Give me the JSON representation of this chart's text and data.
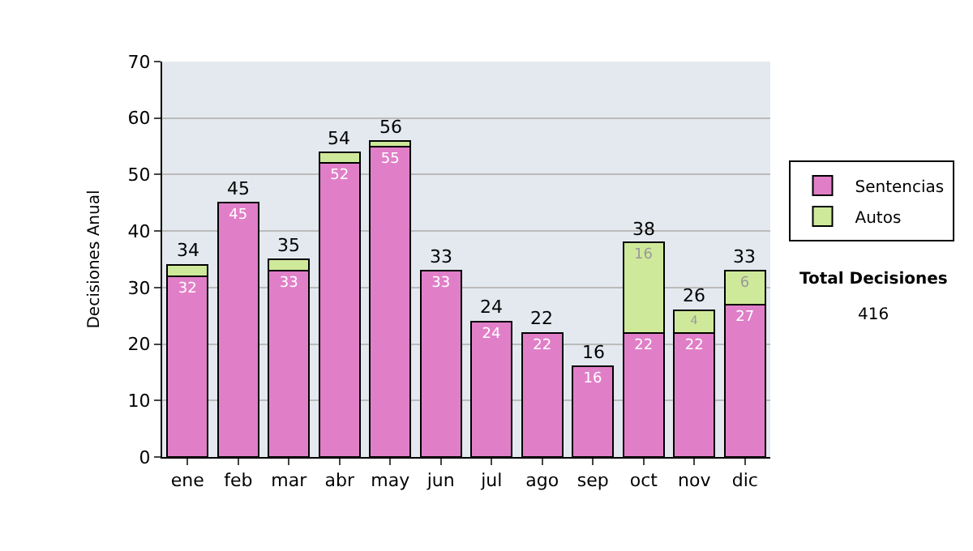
{
  "chart_data": {
    "type": "bar",
    "stacked": true,
    "ylabel": "Decisiones Anual",
    "categories": [
      "ene",
      "feb",
      "mar",
      "abr",
      "may",
      "jun",
      "jul",
      "ago",
      "sep",
      "oct",
      "nov",
      "dic"
    ],
    "series": [
      {
        "name": "Sentencias",
        "color": "#e07fc8",
        "values": [
          32,
          45,
          33,
          52,
          55,
          33,
          24,
          22,
          16,
          22,
          22,
          27
        ],
        "value_labels": [
          "32",
          "45",
          "33",
          "52",
          "55",
          "33",
          "24",
          "22",
          "16",
          "22",
          "22",
          "27"
        ]
      },
      {
        "name": "Autos",
        "color": "#cfe99a",
        "values": [
          2,
          0,
          2,
          2,
          1,
          0,
          0,
          0,
          0,
          16,
          4,
          6
        ],
        "value_labels": [
          null,
          null,
          null,
          null,
          null,
          null,
          null,
          null,
          null,
          "16",
          "4",
          "6"
        ]
      }
    ],
    "totals": [
      "34",
      "45",
      "35",
      "54",
      "56",
      "33",
      "24",
      "22",
      "16",
      "38",
      "26",
      "33"
    ],
    "ylim": [
      0,
      70
    ],
    "yticks": [
      0,
      10,
      20,
      30,
      40,
      50,
      60,
      70
    ],
    "grid": "y",
    "legend": "right",
    "annotations": [
      "Total Decisiones",
      "416"
    ]
  }
}
